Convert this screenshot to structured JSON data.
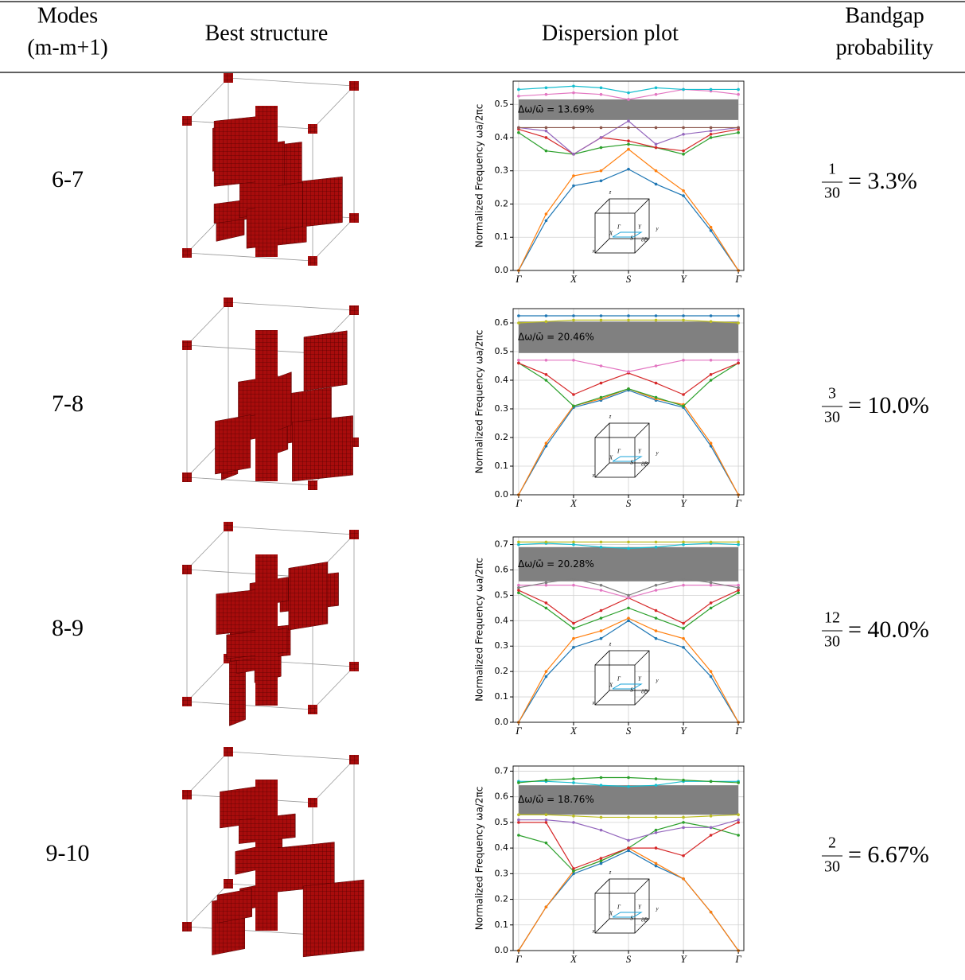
{
  "table": {
    "header": [
      [
        "Modes",
        "(m-m+1)"
      ],
      [
        "Best structure"
      ],
      [
        "Dispersion plot"
      ],
      [
        "Bandgap",
        "probability"
      ]
    ],
    "rows": [
      {
        "modes": "6-7",
        "numerator": "1",
        "denominator": "30",
        "probability": "= 3.3%"
      },
      {
        "modes": "7-8",
        "numerator": "3",
        "denominator": "30",
        "probability": "= 10.0%"
      },
      {
        "modes": "8-9",
        "numerator": "12",
        "denominator": "30",
        "probability": "= 40.0%"
      },
      {
        "modes": "9-10",
        "numerator": "2",
        "denominator": "30",
        "probability": "= 6.67%"
      }
    ]
  },
  "chart_data": [
    {
      "type": "line",
      "y_label": "Normalized Frequency ωa/2πc",
      "annotation": "Δω/ω̄ = 13.69%",
      "gap": [
        0.453,
        0.515
      ],
      "gap_color": "#808080",
      "x": [
        0,
        0.5,
        1,
        1.5,
        2,
        2.5,
        3,
        3.5,
        4
      ],
      "xlim": [
        -0.1,
        4.1
      ],
      "xticks": [
        {
          "value": 0,
          "label": "Γ"
        },
        {
          "value": 1,
          "label": "X"
        },
        {
          "value": 2,
          "label": "S"
        },
        {
          "value": 3,
          "label": "Y"
        },
        {
          "value": 4,
          "label": "Γ"
        }
      ],
      "ylim": [
        0,
        0.57
      ],
      "yticks": [
        {
          "value": 0,
          "label": "0.0"
        },
        0.1,
        0.2,
        0.3,
        0.4,
        0.5
      ],
      "grid": true,
      "inset_labels": [
        "z",
        "x",
        "Γ",
        "X",
        "S",
        "Y",
        "∂B",
        "y"
      ],
      "series": [
        {
          "color": "#1f77b4",
          "values": [
            0,
            0.15,
            0.255,
            0.27,
            0.305,
            0.26,
            0.225,
            0.12,
            0
          ]
        },
        {
          "color": "#ff7f0e",
          "values": [
            0,
            0.17,
            0.285,
            0.3,
            0.365,
            0.3,
            0.24,
            0.13,
            0
          ]
        },
        {
          "color": "#2ca02c",
          "values": [
            0.415,
            0.36,
            0.35,
            0.37,
            0.38,
            0.37,
            0.35,
            0.4,
            0.415
          ]
        },
        {
          "color": "#d62728",
          "values": [
            0.425,
            0.4,
            0.35,
            0.4,
            0.39,
            0.37,
            0.36,
            0.41,
            0.425
          ]
        },
        {
          "color": "#9467bd",
          "values": [
            0.43,
            0.42,
            0.35,
            0.4,
            0.45,
            0.38,
            0.41,
            0.42,
            0.43
          ]
        },
        {
          "color": "#8c564b",
          "values": [
            0.43,
            0.43,
            0.43,
            0.43,
            0.43,
            0.43,
            0.43,
            0.43,
            0.43
          ]
        },
        {
          "color": "#e377c2",
          "values": [
            0.525,
            0.53,
            0.535,
            0.53,
            0.515,
            0.53,
            0.545,
            0.54,
            0.53
          ]
        },
        {
          "color": "#17becf",
          "values": [
            0.545,
            0.55,
            0.555,
            0.55,
            0.535,
            0.55,
            0.545,
            0.545,
            0.545
          ]
        }
      ]
    },
    {
      "type": "line",
      "y_label": "Normalized Frequency ωa/2πc",
      "annotation": "Δω/ω̄ = 20.46%",
      "gap": [
        0.495,
        0.605
      ],
      "gap_color": "#808080",
      "x": [
        0,
        0.5,
        1,
        1.5,
        2,
        2.5,
        3,
        3.5,
        4
      ],
      "xlim": [
        -0.1,
        4.1
      ],
      "xticks": [
        {
          "value": 0,
          "label": "Γ"
        },
        {
          "value": 1,
          "label": "X"
        },
        {
          "value": 2,
          "label": "S"
        },
        {
          "value": 3,
          "label": "Y"
        },
        {
          "value": 4,
          "label": "Γ"
        }
      ],
      "ylim": [
        0,
        0.65
      ],
      "yticks": [
        {
          "value": 0,
          "label": "0.0"
        },
        0.1,
        0.2,
        0.3,
        0.4,
        0.5,
        0.6
      ],
      "grid": true,
      "inset_labels": [
        "z",
        "x",
        "Γ",
        "X",
        "S",
        "Y",
        "∂B",
        "y"
      ],
      "series": [
        {
          "color": "#1f77b4",
          "values": [
            0,
            0.17,
            0.305,
            0.33,
            0.365,
            0.33,
            0.305,
            0.17,
            0
          ]
        },
        {
          "color": "#ff7f0e",
          "values": [
            0,
            0.18,
            0.31,
            0.335,
            0.37,
            0.335,
            0.315,
            0.18,
            0
          ]
        },
        {
          "color": "#2ca02c",
          "values": [
            0.46,
            0.4,
            0.31,
            0.34,
            0.37,
            0.34,
            0.31,
            0.4,
            0.46
          ]
        },
        {
          "color": "#d62728",
          "values": [
            0.46,
            0.42,
            0.35,
            0.39,
            0.425,
            0.39,
            0.35,
            0.42,
            0.46
          ]
        },
        {
          "color": "#e377c2",
          "values": [
            0.47,
            0.47,
            0.47,
            0.45,
            0.43,
            0.45,
            0.47,
            0.47,
            0.47
          ]
        },
        {
          "color": "#bcbd22",
          "values": [
            0.6,
            0.605,
            0.61,
            0.61,
            0.61,
            0.61,
            0.61,
            0.605,
            0.6
          ]
        },
        {
          "color": "#1f77b4",
          "values": [
            0.625,
            0.625,
            0.625,
            0.625,
            0.625,
            0.625,
            0.625,
            0.625,
            0.625
          ]
        }
      ]
    },
    {
      "type": "line",
      "y_label": "Normalized Frequency ωa/2πc",
      "annotation": "Δω/ω̄ = 20.28%",
      "gap": [
        0.555,
        0.69
      ],
      "gap_color": "#808080",
      "x": [
        0,
        0.5,
        1,
        1.5,
        2,
        2.5,
        3,
        3.5,
        4
      ],
      "xlim": [
        -0.1,
        4.1
      ],
      "xticks": [
        {
          "value": 0,
          "label": "Γ"
        },
        {
          "value": 1,
          "label": "X"
        },
        {
          "value": 2,
          "label": "S"
        },
        {
          "value": 3,
          "label": "Y"
        },
        {
          "value": 4,
          "label": "Γ"
        }
      ],
      "ylim": [
        0,
        0.73
      ],
      "yticks": [
        {
          "value": 0,
          "label": "0.0"
        },
        0.1,
        0.2,
        0.3,
        0.4,
        0.5,
        0.6,
        0.7
      ],
      "grid": true,
      "inset_labels": [
        "z",
        "x",
        "Γ",
        "X",
        "S",
        "Y",
        "∂B",
        "y"
      ],
      "series": [
        {
          "color": "#1f77b4",
          "values": [
            0,
            0.18,
            0.295,
            0.33,
            0.4,
            0.33,
            0.295,
            0.18,
            0
          ]
        },
        {
          "color": "#ff7f0e",
          "values": [
            0,
            0.2,
            0.33,
            0.36,
            0.41,
            0.36,
            0.33,
            0.2,
            0
          ]
        },
        {
          "color": "#2ca02c",
          "values": [
            0.51,
            0.45,
            0.37,
            0.41,
            0.45,
            0.41,
            0.37,
            0.45,
            0.51
          ]
        },
        {
          "color": "#d62728",
          "values": [
            0.52,
            0.47,
            0.39,
            0.44,
            0.49,
            0.44,
            0.39,
            0.47,
            0.52
          ]
        },
        {
          "color": "#e377c2",
          "values": [
            0.54,
            0.54,
            0.54,
            0.52,
            0.49,
            0.52,
            0.54,
            0.54,
            0.54
          ]
        },
        {
          "color": "#7f7f7f",
          "values": [
            0.53,
            0.55,
            0.565,
            0.54,
            0.5,
            0.54,
            0.565,
            0.55,
            0.53
          ]
        },
        {
          "color": "#17becf",
          "values": [
            0.7,
            0.705,
            0.7,
            0.69,
            0.685,
            0.69,
            0.7,
            0.705,
            0.7
          ]
        },
        {
          "color": "#bcbd22",
          "values": [
            0.71,
            0.71,
            0.71,
            0.71,
            0.71,
            0.71,
            0.71,
            0.71,
            0.71
          ]
        }
      ]
    },
    {
      "type": "line",
      "y_label": "Normalized Frequency ωa/2πc",
      "annotation": "Δω/ω̄ = 18.76%",
      "gap": [
        0.53,
        0.645
      ],
      "gap_color": "#808080",
      "x": [
        0,
        0.5,
        1,
        1.5,
        2,
        2.5,
        3,
        3.5,
        4
      ],
      "xlim": [
        -0.1,
        4.1
      ],
      "xticks": [
        {
          "value": 0,
          "label": "Γ"
        },
        {
          "value": 1,
          "label": "X"
        },
        {
          "value": 2,
          "label": "S"
        },
        {
          "value": 3,
          "label": "Y"
        },
        {
          "value": 4,
          "label": "Γ"
        }
      ],
      "ylim": [
        0,
        0.72
      ],
      "yticks": [
        {
          "value": 0,
          "label": "0.0"
        },
        0.1,
        0.2,
        0.3,
        0.4,
        0.5,
        0.6,
        0.7
      ],
      "grid": true,
      "inset_labels": [
        "z",
        "x",
        "Γ",
        "X",
        "S",
        "Y",
        "∂B",
        "y"
      ],
      "series": [
        {
          "color": "#1f77b4",
          "values": [
            0,
            0.17,
            0.3,
            0.34,
            0.39,
            0.33,
            0.28,
            0.15,
            0
          ]
        },
        {
          "color": "#ff7f0e",
          "values": [
            0,
            0.17,
            0.31,
            0.35,
            0.4,
            0.34,
            0.28,
            0.15,
            0
          ]
        },
        {
          "color": "#2ca02c",
          "values": [
            0.45,
            0.42,
            0.31,
            0.35,
            0.4,
            0.47,
            0.5,
            0.48,
            0.45
          ]
        },
        {
          "color": "#d62728",
          "values": [
            0.5,
            0.5,
            0.32,
            0.36,
            0.4,
            0.4,
            0.37,
            0.45,
            0.5
          ]
        },
        {
          "color": "#9467bd",
          "values": [
            0.51,
            0.51,
            0.5,
            0.47,
            0.43,
            0.46,
            0.48,
            0.48,
            0.51
          ]
        },
        {
          "color": "#bcbd22",
          "values": [
            0.53,
            0.53,
            0.525,
            0.52,
            0.52,
            0.52,
            0.52,
            0.525,
            0.53
          ]
        },
        {
          "color": "#17becf",
          "values": [
            0.66,
            0.66,
            0.655,
            0.645,
            0.64,
            0.645,
            0.66,
            0.66,
            0.66
          ]
        },
        {
          "color": "#2ca02c",
          "values": [
            0.655,
            0.665,
            0.67,
            0.675,
            0.675,
            0.67,
            0.665,
            0.66,
            0.655
          ]
        }
      ]
    }
  ]
}
